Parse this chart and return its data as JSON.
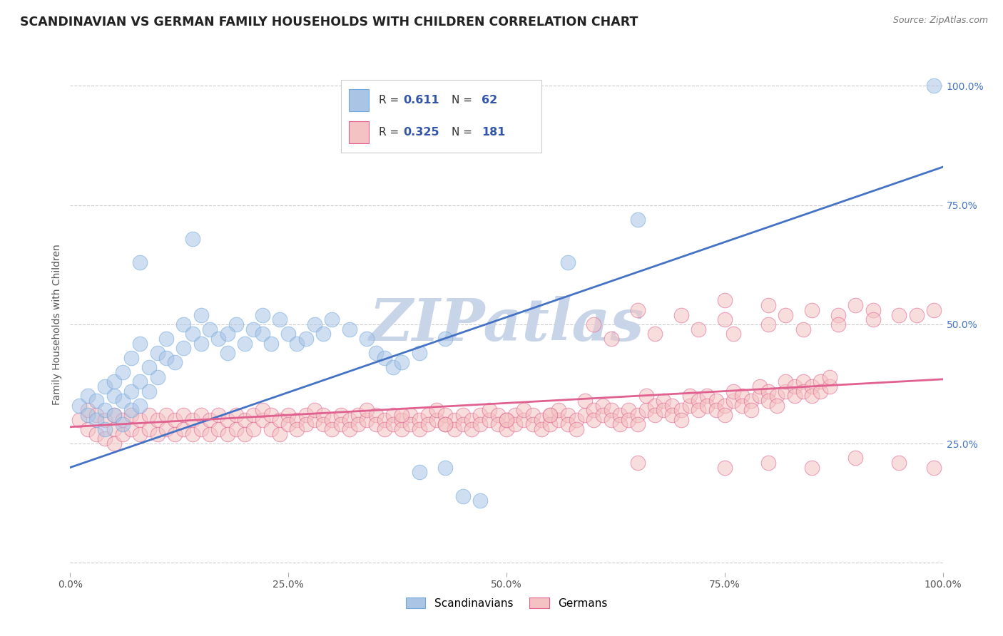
{
  "title": "SCANDINAVIAN VS GERMAN FAMILY HOUSEHOLDS WITH CHILDREN CORRELATION CHART",
  "source": "Source: ZipAtlas.com",
  "ylabel": "Family Households with Children",
  "watermark_text": "ZIPatlas",
  "xlim": [
    0.0,
    1.0
  ],
  "ylim": [
    -0.02,
    1.02
  ],
  "xticks": [
    0.0,
    0.25,
    0.5,
    0.75,
    1.0
  ],
  "xtick_labels": [
    "0.0%",
    "25.0%",
    "50.0%",
    "75.0%",
    "100.0%"
  ],
  "yticks": [
    0.0,
    0.25,
    0.5,
    0.75,
    1.0
  ],
  "ytick_labels_right": [
    "",
    "25.0%",
    "50.0%",
    "75.0%",
    "100.0%"
  ],
  "scand_color": "#aac4e6",
  "scand_edge_color": "#6fa8dc",
  "german_color": "#f4c2c2",
  "german_edge_color": "#e06090",
  "scand_line_color": "#4472c4",
  "german_line_color": "#e06090",
  "background_color": "#ffffff",
  "title_color": "#222222",
  "grid_color": "#cccccc",
  "title_fontsize": 12.5,
  "axis_label_fontsize": 10,
  "tick_fontsize": 10,
  "right_tick_color": "#4472c4",
  "watermark_color": "#c8d4e8",
  "watermark_fontsize": 60,
  "legend_color": "#3355aa",
  "scand_line_y0": 0.2,
  "scand_line_y1": 0.83,
  "german_line_y0": 0.285,
  "german_line_y1": 0.385,
  "scand_points": [
    [
      0.01,
      0.33
    ],
    [
      0.02,
      0.31
    ],
    [
      0.02,
      0.35
    ],
    [
      0.03,
      0.3
    ],
    [
      0.03,
      0.34
    ],
    [
      0.04,
      0.32
    ],
    [
      0.04,
      0.37
    ],
    [
      0.04,
      0.28
    ],
    [
      0.05,
      0.35
    ],
    [
      0.05,
      0.31
    ],
    [
      0.05,
      0.38
    ],
    [
      0.06,
      0.34
    ],
    [
      0.06,
      0.29
    ],
    [
      0.06,
      0.4
    ],
    [
      0.07,
      0.36
    ],
    [
      0.07,
      0.32
    ],
    [
      0.07,
      0.43
    ],
    [
      0.08,
      0.38
    ],
    [
      0.08,
      0.33
    ],
    [
      0.08,
      0.46
    ],
    [
      0.09,
      0.41
    ],
    [
      0.09,
      0.36
    ],
    [
      0.1,
      0.44
    ],
    [
      0.1,
      0.39
    ],
    [
      0.11,
      0.47
    ],
    [
      0.11,
      0.43
    ],
    [
      0.12,
      0.42
    ],
    [
      0.13,
      0.45
    ],
    [
      0.13,
      0.5
    ],
    [
      0.14,
      0.48
    ],
    [
      0.15,
      0.46
    ],
    [
      0.15,
      0.52
    ],
    [
      0.16,
      0.49
    ],
    [
      0.17,
      0.47
    ],
    [
      0.18,
      0.44
    ],
    [
      0.19,
      0.5
    ],
    [
      0.2,
      0.46
    ],
    [
      0.21,
      0.49
    ],
    [
      0.22,
      0.48
    ],
    [
      0.23,
      0.46
    ],
    [
      0.24,
      0.51
    ],
    [
      0.25,
      0.48
    ],
    [
      0.26,
      0.46
    ],
    [
      0.27,
      0.47
    ],
    [
      0.28,
      0.5
    ],
    [
      0.29,
      0.48
    ],
    [
      0.3,
      0.51
    ],
    [
      0.32,
      0.49
    ],
    [
      0.34,
      0.47
    ],
    [
      0.35,
      0.44
    ],
    [
      0.36,
      0.43
    ],
    [
      0.37,
      0.41
    ],
    [
      0.38,
      0.42
    ],
    [
      0.4,
      0.44
    ],
    [
      0.08,
      0.63
    ],
    [
      0.14,
      0.68
    ],
    [
      0.18,
      0.48
    ],
    [
      0.22,
      0.52
    ],
    [
      0.43,
      0.47
    ],
    [
      0.45,
      0.14
    ],
    [
      0.47,
      0.13
    ],
    [
      0.57,
      0.63
    ],
    [
      0.65,
      0.72
    ],
    [
      0.99,
      1.0
    ],
    [
      0.4,
      0.19
    ],
    [
      0.43,
      0.2
    ]
  ],
  "german_points": [
    [
      0.01,
      0.3
    ],
    [
      0.02,
      0.32
    ],
    [
      0.02,
      0.28
    ],
    [
      0.03,
      0.31
    ],
    [
      0.03,
      0.27
    ],
    [
      0.04,
      0.3
    ],
    [
      0.04,
      0.26
    ],
    [
      0.05,
      0.31
    ],
    [
      0.05,
      0.28
    ],
    [
      0.05,
      0.25
    ],
    [
      0.06,
      0.3
    ],
    [
      0.06,
      0.27
    ],
    [
      0.07,
      0.31
    ],
    [
      0.07,
      0.28
    ],
    [
      0.08,
      0.3
    ],
    [
      0.08,
      0.27
    ],
    [
      0.09,
      0.31
    ],
    [
      0.09,
      0.28
    ],
    [
      0.1,
      0.3
    ],
    [
      0.1,
      0.27
    ],
    [
      0.11,
      0.31
    ],
    [
      0.11,
      0.28
    ],
    [
      0.12,
      0.3
    ],
    [
      0.12,
      0.27
    ],
    [
      0.13,
      0.31
    ],
    [
      0.13,
      0.28
    ],
    [
      0.14,
      0.3
    ],
    [
      0.14,
      0.27
    ],
    [
      0.15,
      0.31
    ],
    [
      0.15,
      0.28
    ],
    [
      0.16,
      0.3
    ],
    [
      0.16,
      0.27
    ],
    [
      0.17,
      0.31
    ],
    [
      0.17,
      0.28
    ],
    [
      0.18,
      0.3
    ],
    [
      0.18,
      0.27
    ],
    [
      0.19,
      0.31
    ],
    [
      0.19,
      0.28
    ],
    [
      0.2,
      0.3
    ],
    [
      0.2,
      0.27
    ],
    [
      0.21,
      0.31
    ],
    [
      0.21,
      0.28
    ],
    [
      0.22,
      0.3
    ],
    [
      0.22,
      0.32
    ],
    [
      0.23,
      0.31
    ],
    [
      0.23,
      0.28
    ],
    [
      0.24,
      0.3
    ],
    [
      0.24,
      0.27
    ],
    [
      0.25,
      0.31
    ],
    [
      0.25,
      0.29
    ],
    [
      0.26,
      0.3
    ],
    [
      0.26,
      0.28
    ],
    [
      0.27,
      0.31
    ],
    [
      0.27,
      0.29
    ],
    [
      0.28,
      0.3
    ],
    [
      0.28,
      0.32
    ],
    [
      0.29,
      0.31
    ],
    [
      0.29,
      0.29
    ],
    [
      0.3,
      0.3
    ],
    [
      0.3,
      0.28
    ],
    [
      0.31,
      0.31
    ],
    [
      0.31,
      0.29
    ],
    [
      0.32,
      0.3
    ],
    [
      0.32,
      0.28
    ],
    [
      0.33,
      0.31
    ],
    [
      0.33,
      0.29
    ],
    [
      0.34,
      0.3
    ],
    [
      0.34,
      0.32
    ],
    [
      0.35,
      0.31
    ],
    [
      0.35,
      0.29
    ],
    [
      0.36,
      0.3
    ],
    [
      0.36,
      0.28
    ],
    [
      0.37,
      0.31
    ],
    [
      0.37,
      0.29
    ],
    [
      0.38,
      0.3
    ],
    [
      0.38,
      0.28
    ],
    [
      0.39,
      0.31
    ],
    [
      0.39,
      0.29
    ],
    [
      0.4,
      0.3
    ],
    [
      0.4,
      0.28
    ],
    [
      0.41,
      0.31
    ],
    [
      0.41,
      0.29
    ],
    [
      0.42,
      0.3
    ],
    [
      0.42,
      0.32
    ],
    [
      0.43,
      0.31
    ],
    [
      0.43,
      0.29
    ],
    [
      0.44,
      0.3
    ],
    [
      0.44,
      0.28
    ],
    [
      0.45,
      0.31
    ],
    [
      0.45,
      0.29
    ],
    [
      0.46,
      0.3
    ],
    [
      0.46,
      0.28
    ],
    [
      0.47,
      0.31
    ],
    [
      0.47,
      0.29
    ],
    [
      0.48,
      0.3
    ],
    [
      0.48,
      0.32
    ],
    [
      0.49,
      0.31
    ],
    [
      0.49,
      0.29
    ],
    [
      0.5,
      0.3
    ],
    [
      0.5,
      0.28
    ],
    [
      0.51,
      0.31
    ],
    [
      0.51,
      0.29
    ],
    [
      0.52,
      0.3
    ],
    [
      0.52,
      0.32
    ],
    [
      0.53,
      0.31
    ],
    [
      0.53,
      0.29
    ],
    [
      0.54,
      0.3
    ],
    [
      0.54,
      0.28
    ],
    [
      0.55,
      0.31
    ],
    [
      0.55,
      0.29
    ],
    [
      0.56,
      0.3
    ],
    [
      0.56,
      0.32
    ],
    [
      0.57,
      0.31
    ],
    [
      0.57,
      0.29
    ],
    [
      0.58,
      0.3
    ],
    [
      0.58,
      0.28
    ],
    [
      0.59,
      0.31
    ],
    [
      0.59,
      0.34
    ],
    [
      0.6,
      0.32
    ],
    [
      0.6,
      0.3
    ],
    [
      0.61,
      0.33
    ],
    [
      0.61,
      0.31
    ],
    [
      0.62,
      0.32
    ],
    [
      0.62,
      0.3
    ],
    [
      0.63,
      0.31
    ],
    [
      0.63,
      0.29
    ],
    [
      0.64,
      0.32
    ],
    [
      0.64,
      0.3
    ],
    [
      0.65,
      0.31
    ],
    [
      0.65,
      0.29
    ],
    [
      0.66,
      0.32
    ],
    [
      0.66,
      0.35
    ],
    [
      0.67,
      0.33
    ],
    [
      0.67,
      0.31
    ],
    [
      0.68,
      0.34
    ],
    [
      0.68,
      0.32
    ],
    [
      0.69,
      0.33
    ],
    [
      0.69,
      0.31
    ],
    [
      0.7,
      0.32
    ],
    [
      0.7,
      0.3
    ],
    [
      0.71,
      0.33
    ],
    [
      0.71,
      0.35
    ],
    [
      0.72,
      0.34
    ],
    [
      0.72,
      0.32
    ],
    [
      0.73,
      0.35
    ],
    [
      0.73,
      0.33
    ],
    [
      0.74,
      0.34
    ],
    [
      0.74,
      0.32
    ],
    [
      0.75,
      0.33
    ],
    [
      0.75,
      0.31
    ],
    [
      0.76,
      0.34
    ],
    [
      0.76,
      0.36
    ],
    [
      0.77,
      0.35
    ],
    [
      0.77,
      0.33
    ],
    [
      0.78,
      0.34
    ],
    [
      0.78,
      0.32
    ],
    [
      0.79,
      0.35
    ],
    [
      0.79,
      0.37
    ],
    [
      0.8,
      0.36
    ],
    [
      0.8,
      0.34
    ],
    [
      0.81,
      0.35
    ],
    [
      0.81,
      0.33
    ],
    [
      0.82,
      0.36
    ],
    [
      0.82,
      0.38
    ],
    [
      0.83,
      0.37
    ],
    [
      0.83,
      0.35
    ],
    [
      0.84,
      0.38
    ],
    [
      0.84,
      0.36
    ],
    [
      0.85,
      0.37
    ],
    [
      0.85,
      0.35
    ],
    [
      0.86,
      0.38
    ],
    [
      0.86,
      0.36
    ],
    [
      0.87,
      0.37
    ],
    [
      0.87,
      0.39
    ],
    [
      0.6,
      0.5
    ],
    [
      0.65,
      0.53
    ],
    [
      0.7,
      0.52
    ],
    [
      0.75,
      0.51
    ],
    [
      0.75,
      0.55
    ],
    [
      0.8,
      0.54
    ],
    [
      0.82,
      0.52
    ],
    [
      0.85,
      0.53
    ],
    [
      0.88,
      0.52
    ],
    [
      0.9,
      0.54
    ],
    [
      0.92,
      0.53
    ],
    [
      0.95,
      0.52
    ],
    [
      0.97,
      0.52
    ],
    [
      0.99,
      0.53
    ],
    [
      0.62,
      0.47
    ],
    [
      0.67,
      0.48
    ],
    [
      0.72,
      0.49
    ],
    [
      0.76,
      0.48
    ],
    [
      0.8,
      0.5
    ],
    [
      0.84,
      0.49
    ],
    [
      0.88,
      0.5
    ],
    [
      0.92,
      0.51
    ],
    [
      0.65,
      0.21
    ],
    [
      0.75,
      0.2
    ],
    [
      0.8,
      0.21
    ],
    [
      0.85,
      0.2
    ],
    [
      0.9,
      0.22
    ],
    [
      0.95,
      0.21
    ],
    [
      0.99,
      0.2
    ],
    [
      0.5,
      0.3
    ],
    [
      0.55,
      0.31
    ],
    [
      0.43,
      0.29
    ],
    [
      0.38,
      0.31
    ]
  ]
}
